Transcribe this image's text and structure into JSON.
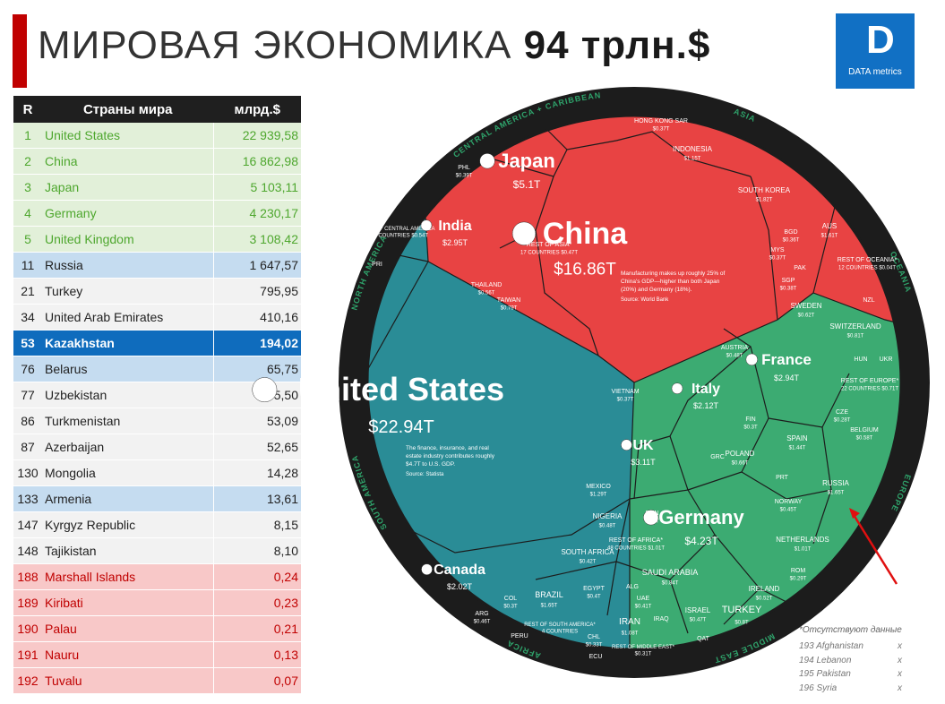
{
  "title": {
    "main": "МИРОВАЯ ЭКОНОМИКА",
    "total": "94 трлн.$"
  },
  "logo": {
    "mark": "D",
    "text": "DATA metrics"
  },
  "table": {
    "headers": [
      "R",
      "Страны мира",
      "млрд.$"
    ],
    "rows": [
      {
        "r": "1",
        "name": "United States",
        "value": "22 939,58",
        "style": "green"
      },
      {
        "r": "2",
        "name": "China",
        "value": "16 862,98",
        "style": "green"
      },
      {
        "r": "3",
        "name": "Japan",
        "value": "5 103,11",
        "style": "green"
      },
      {
        "r": "4",
        "name": "Germany",
        "value": "4 230,17",
        "style": "green"
      },
      {
        "r": "5",
        "name": "United Kingdom",
        "value": "3 108,42",
        "style": "green"
      },
      {
        "r": "11",
        "name": "Russia",
        "value": "1 647,57",
        "style": "blue"
      },
      {
        "r": "21",
        "name": "Turkey",
        "value": "795,95",
        "style": "plain"
      },
      {
        "r": "34",
        "name": "United Arab Emirates",
        "value": "410,16",
        "style": "plain"
      },
      {
        "r": "53",
        "name": "Kazakhstan",
        "value": "194,02",
        "style": "hl"
      },
      {
        "r": "76",
        "name": "Belarus",
        "value": "65,75",
        "style": "blue"
      },
      {
        "r": "77",
        "name": "Uzbekistan",
        "value": "65,50",
        "style": "plain"
      },
      {
        "r": "86",
        "name": "Turkmenistan",
        "value": "53,09",
        "style": "plain"
      },
      {
        "r": "87",
        "name": "Azerbaijan",
        "value": "52,65",
        "style": "plain"
      },
      {
        "r": "130",
        "name": "Mongolia",
        "value": "14,28",
        "style": "plain"
      },
      {
        "r": "133",
        "name": "Armenia",
        "value": "13,61",
        "style": "blue"
      },
      {
        "r": "147",
        "name": "Kyrgyz Republic",
        "value": "8,15",
        "style": "plain"
      },
      {
        "r": "148",
        "name": "Tajikistan",
        "value": "8,10",
        "style": "plain"
      },
      {
        "r": "188",
        "name": "Marshall Islands",
        "value": "0,24",
        "style": "red"
      },
      {
        "r": "189",
        "name": "Kiribati",
        "value": "0,23",
        "style": "red"
      },
      {
        "r": "190",
        "name": "Palau",
        "value": "0,21",
        "style": "red"
      },
      {
        "r": "191",
        "name": "Nauru",
        "value": "0,13",
        "style": "red"
      },
      {
        "r": "192",
        "name": "Tuvalu",
        "value": "0,07",
        "style": "red"
      }
    ]
  },
  "note": {
    "title": "*Отсутствуют данные",
    "items": [
      {
        "text": "193 Afghanistan",
        "mark": "x"
      },
      {
        "text": "194 Lebanon",
        "mark": "x"
      },
      {
        "text": "195 Pakistan",
        "mark": "x"
      },
      {
        "text": "196 Syria",
        "mark": "x"
      }
    ]
  },
  "colors": {
    "asia": "#e84343",
    "north_america": "#2a8c96",
    "europe": "#3cab72",
    "ring": "#1c1c1c",
    "cell_line": "#1c1c1c",
    "arrow": "#e01010"
  },
  "chart_data": {
    "type": "voronoi",
    "ring_labels": [
      "ASIA",
      "OCEANIA",
      "EUROPE",
      "MIDDLE EAST",
      "AFRICA",
      "SOUTH AMERICA",
      "NORTH AMERICA",
      "CENTRAL AMERICA + CARIBBEAN"
    ],
    "regions": {
      "asia": [
        {
          "name": "China",
          "value": "$16.86T",
          "note": "Manufacturing makes up roughly 25% of China's GDP—higher than both Japan (20%) and Germany (18%).",
          "source": "Source: World Bank"
        },
        {
          "name": "Japan",
          "value": "$5.1T"
        },
        {
          "name": "India",
          "value": "$2.95T"
        },
        {
          "name": "INDONESIA",
          "value": "$1.15T"
        },
        {
          "name": "SOUTH KOREA",
          "value": "$1.82T"
        },
        {
          "name": "HONG KONG SAR",
          "value": "$0.37T"
        },
        {
          "name": "PHL",
          "value": "$0.39T"
        },
        {
          "name": "REST OF ASIA*",
          "value": "17 COUNTRIES $0.47T"
        },
        {
          "name": "THAILAND",
          "value": "$0.56T"
        },
        {
          "name": "TAIWAN",
          "value": "$0.79T"
        },
        {
          "name": "BGD",
          "value": "$0.36T"
        },
        {
          "name": "MYS",
          "value": "$0.37T"
        },
        {
          "name": "SGP",
          "value": "$0.38T"
        },
        {
          "name": "PAK",
          "value": ""
        },
        {
          "name": "VIETNAM",
          "value": "$0.37T"
        }
      ],
      "oceania": [
        {
          "name": "AUS",
          "value": "$1.61T"
        },
        {
          "name": "REST OF OCEANIA*",
          "value": "12 COUNTRIES $0.04T"
        },
        {
          "name": "NZL",
          "value": ""
        }
      ],
      "north_america": [
        {
          "name": "United States",
          "value": "$22.94T",
          "note": "The finance, insurance, and real estate industry contributes roughly $4.7T to U.S. GDP.",
          "source": "Source: Statista"
        },
        {
          "name": "Canada",
          "value": "$2.02T"
        },
        {
          "name": "MEXICO",
          "value": "$1.29T"
        },
        {
          "name": "CARL + CENTRAL AMERICA",
          "value": "23 COUNTRIES $0.54T"
        },
        {
          "name": "PRI",
          "value": ""
        }
      ],
      "south_america": [
        {
          "name": "BRAZIL",
          "value": "$1.65T"
        },
        {
          "name": "ARG",
          "value": "$0.46T"
        },
        {
          "name": "COL",
          "value": "$0.3T"
        },
        {
          "name": "PERU",
          "value": ""
        },
        {
          "name": "CHL",
          "value": "$0.33T"
        },
        {
          "name": "ECU",
          "value": ""
        },
        {
          "name": "REST OF SOUTH AMERICA*",
          "value": "4 COUNTRIES"
        }
      ],
      "europe": [
        {
          "name": "Germany",
          "value": "$4.23T"
        },
        {
          "name": "UK",
          "value": "$3.11T"
        },
        {
          "name": "France",
          "value": "$2.94T"
        },
        {
          "name": "Italy",
          "value": "$2.12T"
        },
        {
          "name": "RUSSIA",
          "value": "$1.65T"
        },
        {
          "name": "SPAIN",
          "value": "$1.44T"
        },
        {
          "name": "NETHERLANDS",
          "value": "$1.01T"
        },
        {
          "name": "SWITZERLAND",
          "value": "$0.81T"
        },
        {
          "name": "SWEDEN",
          "value": "$0.62T"
        },
        {
          "name": "POLAND",
          "value": "$0.66T"
        },
        {
          "name": "BELGIUM",
          "value": "$0.58T"
        },
        {
          "name": "IRELAND",
          "value": "$0.52T"
        },
        {
          "name": "AUSTRIA",
          "value": "$0.48T"
        },
        {
          "name": "NORWAY",
          "value": "$0.45T"
        },
        {
          "name": "DEN",
          "value": "$0.4T"
        },
        {
          "name": "FIN",
          "value": "$0.3T"
        },
        {
          "name": "ROM",
          "value": "$0.29T"
        },
        {
          "name": "CZE",
          "value": "$0.28T"
        },
        {
          "name": "REST OF EUROPE*",
          "value": "22 COUNTRIES $0.71T"
        },
        {
          "name": "GRC",
          "value": ""
        },
        {
          "name": "PRT",
          "value": ""
        },
        {
          "name": "HUN",
          "value": ""
        },
        {
          "name": "UKR",
          "value": ""
        }
      ],
      "middle_east": [
        {
          "name": "TURKEY",
          "value": "$0.8T"
        },
        {
          "name": "SAUDI ARABIA",
          "value": "$0.84T"
        },
        {
          "name": "IRAN",
          "value": "$1.08T"
        },
        {
          "name": "UAE",
          "value": "$0.41T"
        },
        {
          "name": "ISRAEL",
          "value": "$0.47T"
        },
        {
          "name": "IRAQ",
          "value": ""
        },
        {
          "name": "QAT",
          "value": ""
        },
        {
          "name": "REST OF MIDDLE EAST*",
          "value": "$0.31T"
        }
      ],
      "africa": [
        {
          "name": "NIGERIA",
          "value": "$0.48T"
        },
        {
          "name": "SOUTH AFRICA",
          "value": "$0.42T"
        },
        {
          "name": "EGYPT",
          "value": "$0.4T"
        },
        {
          "name": "ALG",
          "value": ""
        },
        {
          "name": "REST OF AFRICA*",
          "value": "48 COUNTRIES $1.01T"
        }
      ]
    }
  }
}
